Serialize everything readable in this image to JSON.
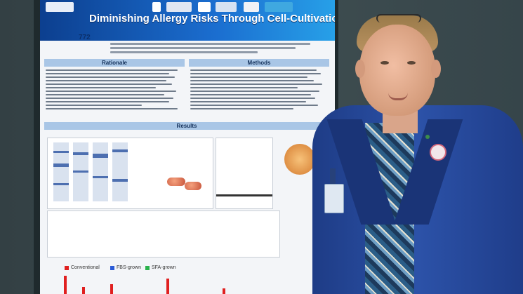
{
  "poster": {
    "title": "Diminishing Allergy Risks Through Cell-Cultivation of Fish",
    "number": "772",
    "sections": {
      "rationale": "Rationale",
      "methods": "Methods",
      "results": "Results"
    },
    "legend": {
      "conventional": "Conventional",
      "fbs_grown": "FBS-grown",
      "sfa_grown": "SFA-grown"
    },
    "colors": {
      "conventional": "#e02020",
      "fbs_grown": "#2a5bd7",
      "sfa_grown": "#2bb24c"
    }
  },
  "scene": {
    "subject": "presenter-beside-poster"
  }
}
